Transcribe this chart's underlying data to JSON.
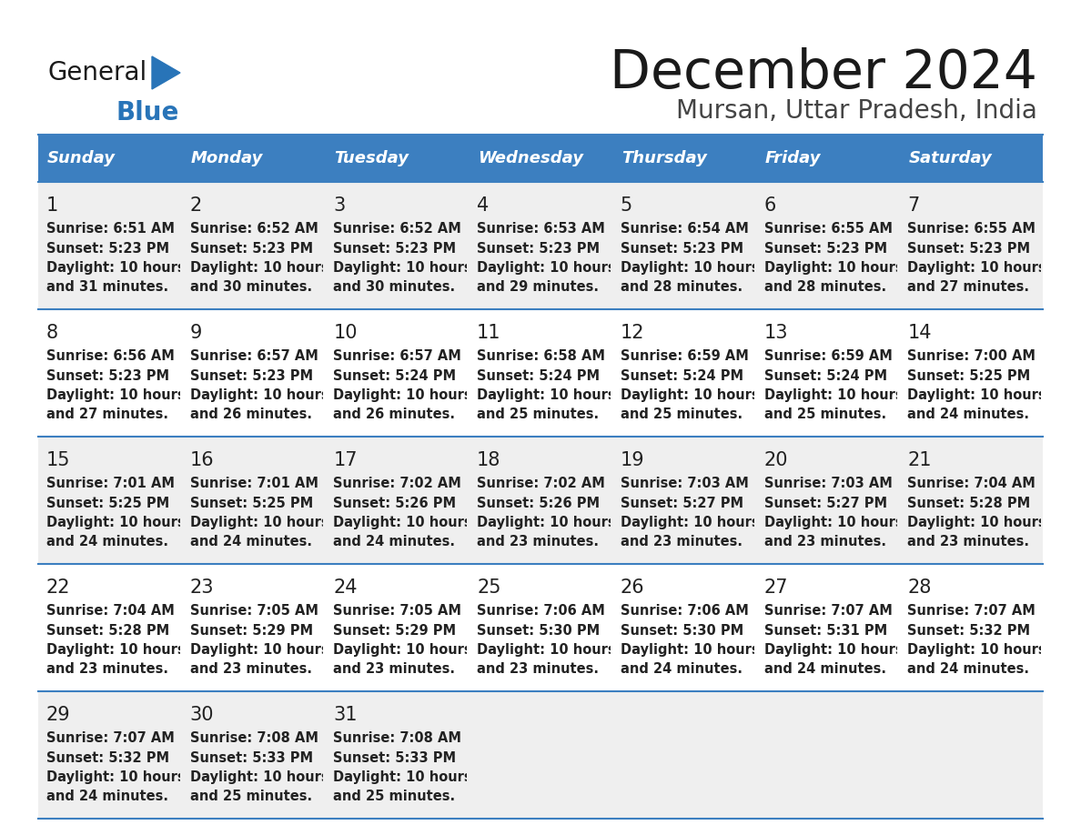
{
  "title": "December 2024",
  "subtitle": "Mursan, Uttar Pradesh, India",
  "days_of_week": [
    "Sunday",
    "Monday",
    "Tuesday",
    "Wednesday",
    "Thursday",
    "Friday",
    "Saturday"
  ],
  "header_bg": "#3C7FC0",
  "header_text_color": "#FFFFFF",
  "row_bg_odd": "#EFEFEF",
  "row_bg_even": "#FFFFFF",
  "cell_text_color": "#222222",
  "day_num_color": "#222222",
  "border_color": "#3C7FC0",
  "title_color": "#1a1a1a",
  "subtitle_color": "#444444",
  "logo_general_color": "#1a1a1a",
  "logo_blue_color": "#2874B8",
  "calendar_data": [
    [
      {
        "day": "1",
        "sunrise": "6:51 AM",
        "sunset": "5:23 PM",
        "daylight_h": "10 hours",
        "daylight_m": "and 31 minutes."
      },
      {
        "day": "2",
        "sunrise": "6:52 AM",
        "sunset": "5:23 PM",
        "daylight_h": "10 hours",
        "daylight_m": "and 30 minutes."
      },
      {
        "day": "3",
        "sunrise": "6:52 AM",
        "sunset": "5:23 PM",
        "daylight_h": "10 hours",
        "daylight_m": "and 30 minutes."
      },
      {
        "day": "4",
        "sunrise": "6:53 AM",
        "sunset": "5:23 PM",
        "daylight_h": "10 hours",
        "daylight_m": "and 29 minutes."
      },
      {
        "day": "5",
        "sunrise": "6:54 AM",
        "sunset": "5:23 PM",
        "daylight_h": "10 hours",
        "daylight_m": "and 28 minutes."
      },
      {
        "day": "6",
        "sunrise": "6:55 AM",
        "sunset": "5:23 PM",
        "daylight_h": "10 hours",
        "daylight_m": "and 28 minutes."
      },
      {
        "day": "7",
        "sunrise": "6:55 AM",
        "sunset": "5:23 PM",
        "daylight_h": "10 hours",
        "daylight_m": "and 27 minutes."
      }
    ],
    [
      {
        "day": "8",
        "sunrise": "6:56 AM",
        "sunset": "5:23 PM",
        "daylight_h": "10 hours",
        "daylight_m": "and 27 minutes."
      },
      {
        "day": "9",
        "sunrise": "6:57 AM",
        "sunset": "5:23 PM",
        "daylight_h": "10 hours",
        "daylight_m": "and 26 minutes."
      },
      {
        "day": "10",
        "sunrise": "6:57 AM",
        "sunset": "5:24 PM",
        "daylight_h": "10 hours",
        "daylight_m": "and 26 minutes."
      },
      {
        "day": "11",
        "sunrise": "6:58 AM",
        "sunset": "5:24 PM",
        "daylight_h": "10 hours",
        "daylight_m": "and 25 minutes."
      },
      {
        "day": "12",
        "sunrise": "6:59 AM",
        "sunset": "5:24 PM",
        "daylight_h": "10 hours",
        "daylight_m": "and 25 minutes."
      },
      {
        "day": "13",
        "sunrise": "6:59 AM",
        "sunset": "5:24 PM",
        "daylight_h": "10 hours",
        "daylight_m": "and 25 minutes."
      },
      {
        "day": "14",
        "sunrise": "7:00 AM",
        "sunset": "5:25 PM",
        "daylight_h": "10 hours",
        "daylight_m": "and 24 minutes."
      }
    ],
    [
      {
        "day": "15",
        "sunrise": "7:01 AM",
        "sunset": "5:25 PM",
        "daylight_h": "10 hours",
        "daylight_m": "and 24 minutes."
      },
      {
        "day": "16",
        "sunrise": "7:01 AM",
        "sunset": "5:25 PM",
        "daylight_h": "10 hours",
        "daylight_m": "and 24 minutes."
      },
      {
        "day": "17",
        "sunrise": "7:02 AM",
        "sunset": "5:26 PM",
        "daylight_h": "10 hours",
        "daylight_m": "and 24 minutes."
      },
      {
        "day": "18",
        "sunrise": "7:02 AM",
        "sunset": "5:26 PM",
        "daylight_h": "10 hours",
        "daylight_m": "and 23 minutes."
      },
      {
        "day": "19",
        "sunrise": "7:03 AM",
        "sunset": "5:27 PM",
        "daylight_h": "10 hours",
        "daylight_m": "and 23 minutes."
      },
      {
        "day": "20",
        "sunrise": "7:03 AM",
        "sunset": "5:27 PM",
        "daylight_h": "10 hours",
        "daylight_m": "and 23 minutes."
      },
      {
        "day": "21",
        "sunrise": "7:04 AM",
        "sunset": "5:28 PM",
        "daylight_h": "10 hours",
        "daylight_m": "and 23 minutes."
      }
    ],
    [
      {
        "day": "22",
        "sunrise": "7:04 AM",
        "sunset": "5:28 PM",
        "daylight_h": "10 hours",
        "daylight_m": "and 23 minutes."
      },
      {
        "day": "23",
        "sunrise": "7:05 AM",
        "sunset": "5:29 PM",
        "daylight_h": "10 hours",
        "daylight_m": "and 23 minutes."
      },
      {
        "day": "24",
        "sunrise": "7:05 AM",
        "sunset": "5:29 PM",
        "daylight_h": "10 hours",
        "daylight_m": "and 23 minutes."
      },
      {
        "day": "25",
        "sunrise": "7:06 AM",
        "sunset": "5:30 PM",
        "daylight_h": "10 hours",
        "daylight_m": "and 23 minutes."
      },
      {
        "day": "26",
        "sunrise": "7:06 AM",
        "sunset": "5:30 PM",
        "daylight_h": "10 hours",
        "daylight_m": "and 24 minutes."
      },
      {
        "day": "27",
        "sunrise": "7:07 AM",
        "sunset": "5:31 PM",
        "daylight_h": "10 hours",
        "daylight_m": "and 24 minutes."
      },
      {
        "day": "28",
        "sunrise": "7:07 AM",
        "sunset": "5:32 PM",
        "daylight_h": "10 hours",
        "daylight_m": "and 24 minutes."
      }
    ],
    [
      {
        "day": "29",
        "sunrise": "7:07 AM",
        "sunset": "5:32 PM",
        "daylight_h": "10 hours",
        "daylight_m": "and 24 minutes."
      },
      {
        "day": "30",
        "sunrise": "7:08 AM",
        "sunset": "5:33 PM",
        "daylight_h": "10 hours",
        "daylight_m": "and 25 minutes."
      },
      {
        "day": "31",
        "sunrise": "7:08 AM",
        "sunset": "5:33 PM",
        "daylight_h": "10 hours",
        "daylight_m": "and 25 minutes."
      },
      null,
      null,
      null,
      null
    ]
  ],
  "figsize": [
    11.88,
    9.18
  ],
  "dpi": 100
}
